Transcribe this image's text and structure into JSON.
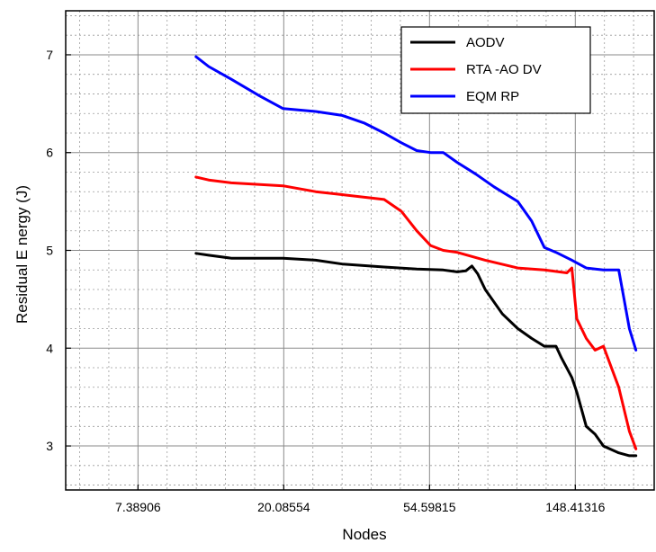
{
  "chart_data": {
    "type": "line",
    "title": "",
    "xlabel": "Nodes",
    "ylabel": "Residual E nergy (J)",
    "x_scale": "log",
    "x_ticks": [
      7.38906,
      20.08554,
      54.59815,
      148.41316
    ],
    "x_tick_labels": [
      "7.38906",
      "20.08554",
      "54.59815",
      "148.41316"
    ],
    "xlim": [
      4.5,
      255
    ],
    "y_ticks": [
      3,
      4,
      5,
      6,
      7
    ],
    "y_tick_labels": [
      "3",
      "4",
      "5",
      "6",
      "7"
    ],
    "ylim": [
      2.55,
      7.45
    ],
    "grid": true,
    "legend_position": "top-right",
    "series": [
      {
        "name": "AODV",
        "color": "#000000",
        "x": [
          11,
          12,
          14,
          20,
          25,
          30,
          40,
          50,
          60,
          66,
          70,
          73,
          76,
          80,
          90,
          100,
          110,
          120,
          130,
          135,
          145,
          150,
          160,
          170,
          180,
          200,
          215,
          225
        ],
        "y": [
          4.97,
          4.95,
          4.92,
          4.92,
          4.9,
          4.86,
          4.83,
          4.81,
          4.8,
          4.78,
          4.79,
          4.84,
          4.76,
          4.6,
          4.35,
          4.2,
          4.1,
          4.02,
          4.02,
          3.9,
          3.7,
          3.55,
          3.2,
          3.12,
          3.0,
          2.93,
          2.9,
          2.9
        ]
      },
      {
        "name": "RTA -AO DV",
        "color": "#ff0000",
        "x": [
          11,
          12,
          14,
          20,
          25,
          30,
          40,
          45,
          50,
          55,
          60,
          66,
          80,
          100,
          120,
          140,
          145,
          150,
          160,
          170,
          180,
          200,
          215,
          225
        ],
        "y": [
          5.75,
          5.72,
          5.69,
          5.66,
          5.6,
          5.57,
          5.52,
          5.4,
          5.2,
          5.05,
          5.0,
          4.98,
          4.9,
          4.82,
          4.8,
          4.77,
          4.82,
          4.3,
          4.1,
          3.98,
          4.02,
          3.6,
          3.15,
          2.97
        ]
      },
      {
        "name": "EQM RP",
        "color": "#0000ff",
        "x": [
          11,
          12,
          14,
          17,
          20,
          25,
          30,
          35,
          40,
          45,
          50,
          55,
          60,
          66,
          75,
          85,
          100,
          110,
          120,
          130,
          145,
          160,
          180,
          200,
          210,
          215,
          225
        ],
        "y": [
          6.98,
          6.88,
          6.75,
          6.58,
          6.45,
          6.42,
          6.38,
          6.3,
          6.2,
          6.1,
          6.02,
          6.0,
          6.0,
          5.9,
          5.78,
          5.65,
          5.5,
          5.3,
          5.03,
          4.98,
          4.9,
          4.82,
          4.8,
          4.8,
          4.4,
          4.2,
          3.98
        ]
      }
    ]
  }
}
